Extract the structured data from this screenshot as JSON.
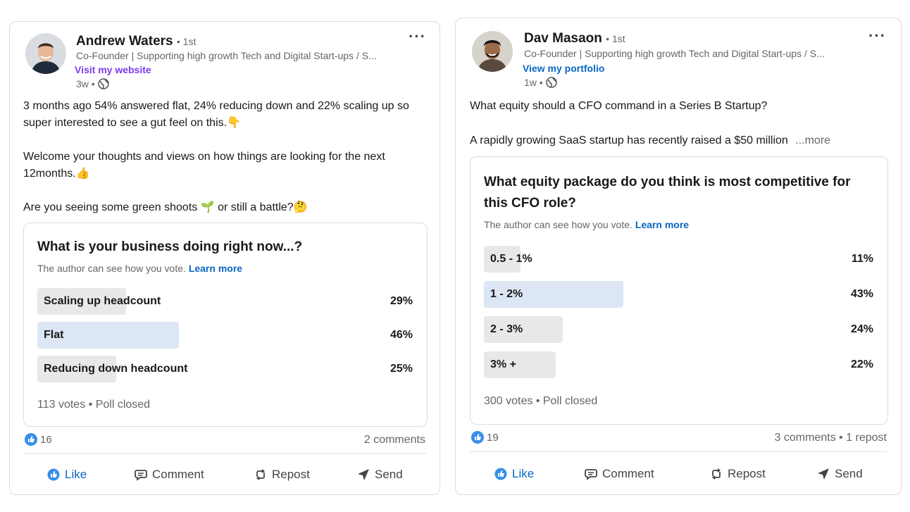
{
  "posts": [
    {
      "author": "Andrew Waters",
      "connection": "• 1st",
      "headline": "Co-Founder | Supporting high growth Tech and Digital Start-ups / S...",
      "link": "Visit my website",
      "time": "3w •",
      "body": [
        "3 months ago 54% answered flat, 24% reducing down and 22% scaling up so super interested to see a gut feel on this.👇",
        "Welcome your thoughts and views on how things are looking for the next 12months.👍",
        "Are you seeing some green shoots 🌱 or still a battle?🤔"
      ],
      "poll": {
        "question": "What is your business doing right now...?",
        "note": "The author can see how you vote.",
        "learn_more": "Learn more",
        "options": [
          {
            "label": "Scaling up headcount",
            "percent": "29%",
            "share": 29,
            "selected": false
          },
          {
            "label": "Flat",
            "percent": "46%",
            "share": 46,
            "selected": true
          },
          {
            "label": "Reducing down headcount",
            "percent": "25%",
            "share": 25,
            "selected": false
          }
        ],
        "votes": "113 votes • Poll closed"
      },
      "reactions": "16",
      "stats": "2 comments"
    },
    {
      "author": "Dav Masaon",
      "connection": "• 1st",
      "headline": "Co-Founder | Supporting high growth Tech and Digital Start-ups / S...",
      "link": "View my portfolio",
      "time": "1w •",
      "body": [
        "What equity should a CFO command in a Series B Startup?",
        "A rapidly growing SaaS startup has recently raised a $50 million"
      ],
      "more": "...more",
      "poll": {
        "question": "What equity package do you think is most competitive for this CFO role?",
        "note": "The author can see how you vote.",
        "learn_more": "Learn more",
        "options": [
          {
            "label": "0.5 - 1%",
            "percent": "11%",
            "share": 11,
            "selected": false
          },
          {
            "label": "1 - 2%",
            "percent": "43%",
            "share": 43,
            "selected": true
          },
          {
            "label": "2 - 3%",
            "percent": "24%",
            "share": 24,
            "selected": false
          },
          {
            "label": "3% +",
            "percent": "22%",
            "share": 22,
            "selected": false
          }
        ],
        "votes": "300 votes • Poll closed"
      },
      "reactions": "19",
      "stats": "3 comments • 1 repost"
    }
  ],
  "actions": {
    "like": "Like",
    "comment": "Comment",
    "repost": "Repost",
    "send": "Send"
  },
  "colors": {
    "link_purple": "#7c3aed",
    "link_blue": "#0a66c2",
    "bar_selected": "#dce6f4",
    "bar_default": "#e8e8e8"
  }
}
